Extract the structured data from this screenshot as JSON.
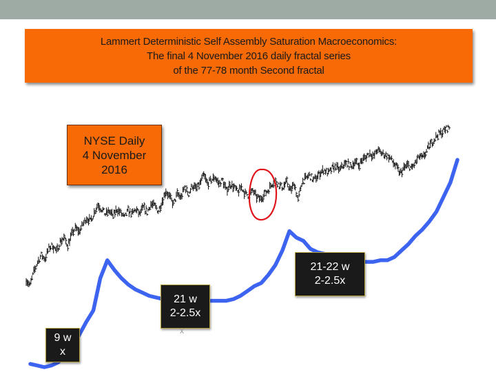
{
  "header": {
    "bar_color": "#9eaba4"
  },
  "title_lines": [
    "Lammert Deterministic Self Assembly Saturation Macroeconomics:",
    "The final 4 November 2016 daily fractal series",
    "of the 77-78 month Second fractal"
  ],
  "nyse_label": [
    "NYSE Daily",
    "4 November",
    "2016"
  ],
  "annotations": {
    "box_9w": [
      "9 w",
      "x"
    ],
    "box_21w": [
      "21 w",
      "2-2.5x"
    ],
    "box_21_22w": [
      "21-22 w",
      "2-2.5x"
    ],
    "stray_mark": "x"
  },
  "colors": {
    "accent": "#f76a05",
    "curve": "#3d64f0",
    "circle": "#e0141a",
    "bars": "#111111"
  },
  "chart_data": {
    "type": "line",
    "title": "",
    "xlabel": "",
    "ylabel": "",
    "grid": false,
    "series": [
      {
        "style": "ohlc-bars",
        "values": [
          0.14,
          0.1,
          0.18,
          0.24,
          0.28,
          0.26,
          0.32,
          0.34,
          0.3,
          0.36,
          0.38,
          0.34,
          0.4,
          0.44,
          0.42,
          0.46,
          0.5,
          0.48,
          0.53,
          0.58,
          0.55,
          0.52,
          0.54,
          0.51,
          0.55,
          0.53,
          0.5,
          0.54,
          0.52,
          0.55,
          0.52,
          0.56,
          0.53,
          0.58,
          0.57,
          0.54,
          0.6,
          0.66,
          0.62,
          0.58,
          0.64,
          0.62,
          0.68,
          0.64,
          0.69,
          0.67,
          0.7,
          0.75,
          0.7,
          0.72,
          0.74,
          0.7,
          0.72,
          0.66,
          0.7,
          0.68,
          0.65,
          0.68,
          0.64,
          0.63,
          0.66,
          0.62,
          0.61,
          0.64,
          0.66,
          0.7,
          0.72,
          0.69,
          0.68,
          0.71,
          0.66,
          0.7,
          0.6,
          0.71,
          0.73,
          0.75,
          0.72,
          0.74,
          0.77,
          0.78,
          0.76,
          0.79,
          0.8,
          0.78,
          0.81,
          0.82,
          0.8,
          0.83,
          0.81,
          0.84,
          0.86,
          0.88,
          0.86,
          0.9,
          0.88,
          0.87,
          0.86,
          0.83,
          0.8,
          0.76,
          0.79,
          0.81,
          0.79,
          0.82,
          0.86,
          0.85,
          0.89,
          0.93,
          0.96,
          0.99,
          1.0,
          1.02,
          1.03
        ]
      },
      {
        "style": "curve",
        "values": [
          0.02,
          0.01,
          0.0,
          0.01,
          0.03,
          0.07,
          0.13,
          0.2,
          0.28,
          0.35,
          0.55,
          0.66,
          0.6,
          0.55,
          0.51,
          0.48,
          0.46,
          0.44,
          0.43,
          0.42,
          0.42,
          0.42,
          0.41,
          0.41,
          0.41,
          0.41,
          0.41,
          0.41,
          0.41,
          0.42,
          0.44,
          0.47,
          0.5,
          0.52,
          0.57,
          0.63,
          0.72,
          0.84,
          0.8,
          0.78,
          0.73,
          0.71,
          0.7,
          0.67,
          0.66,
          0.65,
          0.65,
          0.65,
          0.65,
          0.65,
          0.66,
          0.66,
          0.68,
          0.72,
          0.76,
          0.81,
          0.85,
          0.9,
          0.96,
          1.05,
          1.14,
          1.28
        ]
      }
    ]
  }
}
